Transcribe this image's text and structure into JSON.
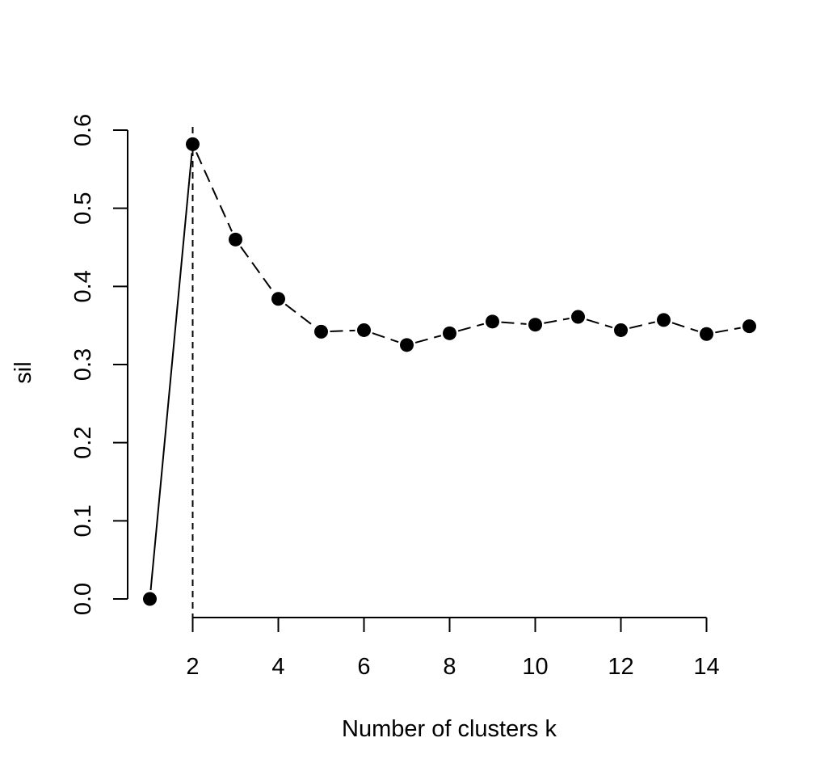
{
  "chart_data": {
    "type": "line",
    "title": "",
    "xlabel": "Number of clusters k",
    "ylabel": "sil",
    "x": [
      1,
      2,
      3,
      4,
      5,
      6,
      7,
      8,
      9,
      10,
      11,
      12,
      13,
      14,
      15
    ],
    "series": [
      {
        "values": [
          0.0,
          0.582,
          0.46,
          0.384,
          0.342,
          0.344,
          0.325,
          0.34,
          0.355,
          0.351,
          0.361,
          0.344,
          0.357,
          0.339,
          0.349
        ]
      }
    ],
    "vline": {
      "x": 2,
      "style": "dashed"
    },
    "segments_style": "first segment solid, remaining segments dashed",
    "xlim": [
      0.5,
      15.5
    ],
    "ylim": [
      0.0,
      0.6
    ],
    "xticks": [
      2,
      4,
      6,
      8,
      10,
      12,
      14
    ],
    "yticks": [
      0.0,
      0.1,
      0.2,
      0.3,
      0.4,
      0.5,
      0.6
    ],
    "xtick_labels": [
      "2",
      "4",
      "6",
      "8",
      "10",
      "12",
      "14"
    ],
    "ytick_labels": [
      "0.0",
      "0.1",
      "0.2",
      "0.3",
      "0.4",
      "0.5",
      "0.6"
    ],
    "grid": false,
    "marker": "filled-circle",
    "color": "#000000"
  }
}
